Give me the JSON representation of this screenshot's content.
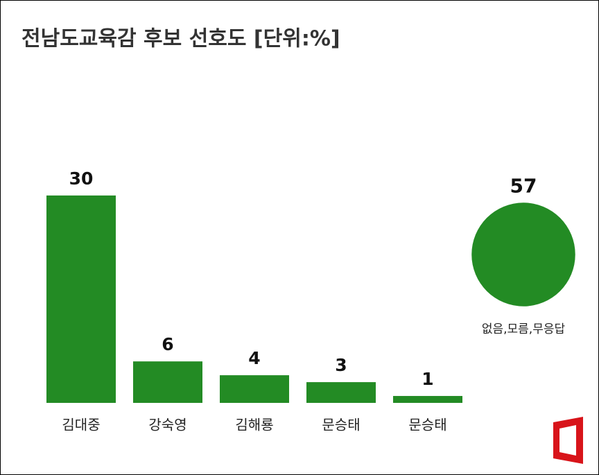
{
  "chart_data": {
    "type": "bar",
    "title": "전남도교육감 후보 선호도 [단위:%]",
    "categories": [
      "김대중",
      "강숙영",
      "김해룡",
      "문승태",
      "문승태"
    ],
    "values": [
      30,
      6,
      4,
      3,
      1
    ],
    "color": "#238b24",
    "other": {
      "label": "없음,모름,무응답",
      "value": 57
    }
  }
}
